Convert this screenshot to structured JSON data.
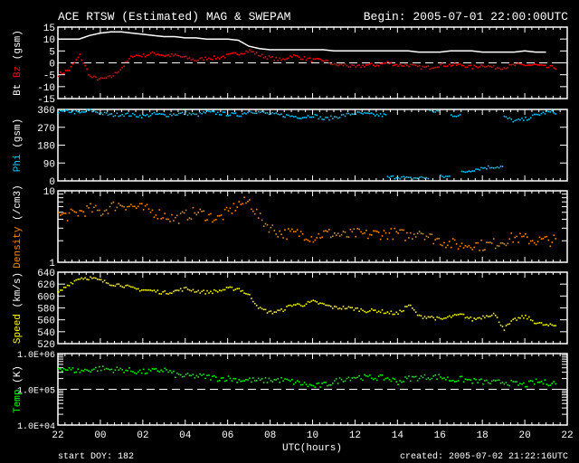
{
  "header": {
    "title": "ACE RTSW (Estimated) MAG & SWEPAM",
    "begin": "Begin: 2005-07-01 22:00:00UTC"
  },
  "footer": {
    "xlabel": "UTC(hours)",
    "start_doy": "start DOY: 182",
    "created": "created: 2005-07-02 21:22:16UTC"
  },
  "chart_data": {
    "type": "scatter",
    "x_ticks": [
      "22",
      "00",
      "02",
      "04",
      "06",
      "08",
      "10",
      "12",
      "14",
      "16",
      "18",
      "20",
      "22"
    ],
    "x_range_hours": [
      0,
      24
    ],
    "x_sample_step_hours": 0.5,
    "panels": [
      {
        "name": "mag",
        "ylabel_parts": [
          {
            "text": "Bt",
            "color": "#ffffff"
          },
          {
            "text": " Bz",
            "color": "#ff0000"
          },
          {
            "text": " (gsm)",
            "color": "#ffffff"
          }
        ],
        "scale": "linear",
        "ylim": [
          -15,
          15
        ],
        "ticks": [
          {
            "v": 15,
            "l": "15"
          },
          {
            "v": 10,
            "l": "10"
          },
          {
            "v": 5,
            "l": "5"
          },
          {
            "v": 0,
            "l": "0"
          },
          {
            "v": -5,
            "l": "-5"
          },
          {
            "v": -10,
            "l": "-10"
          },
          {
            "v": -15,
            "l": "-15"
          }
        ],
        "dashed_at": 0,
        "series": [
          {
            "name": "Bt",
            "color": "#ffffff",
            "style": "line",
            "values": [
              10,
              10,
              10,
              11.5,
              12.5,
              13,
              13,
              12.5,
              12,
              11.5,
              11,
              11,
              10.5,
              10.5,
              10,
              10,
              10,
              9.5,
              7,
              6,
              5.5,
              5.5,
              5.5,
              5.5,
              5.5,
              5.5,
              5,
              5,
              5,
              5,
              5,
              5,
              5,
              5,
              4.5,
              4.5,
              4.5,
              5,
              5,
              5,
              4.5,
              4.5,
              4.5,
              4.5,
              5,
              4.5,
              4.5
            ]
          },
          {
            "name": "Bz",
            "color": "#ff0000",
            "style": "dots",
            "values": [
              -5,
              -3,
              3,
              -6,
              -7,
              -6,
              -2,
              3,
              3,
              4,
              3,
              3,
              2,
              1,
              2,
              2,
              3,
              4,
              5,
              3,
              2,
              1,
              3,
              2,
              1,
              1,
              -1,
              -1,
              -2,
              -1,
              -1,
              0,
              -1,
              -1,
              -2,
              -2,
              -1,
              -1,
              -1,
              -2,
              -1,
              -2,
              -2,
              -1,
              -1,
              -1,
              -2
            ]
          }
        ]
      },
      {
        "name": "phi",
        "ylabel_parts": [
          {
            "text": "Phi",
            "color": "#00c8ff"
          },
          {
            "text": " (gsm)",
            "color": "#ffffff"
          }
        ],
        "scale": "linear",
        "ylim": [
          0,
          360
        ],
        "ticks": [
          {
            "v": 360,
            "l": "360"
          },
          {
            "v": 270,
            "l": "270"
          },
          {
            "v": 180,
            "l": "180"
          },
          {
            "v": 90,
            "l": "90"
          },
          {
            "v": 0,
            "l": "0"
          }
        ],
        "series": [
          {
            "name": "Phi",
            "color": "#00c8ff",
            "style": "dots",
            "values": [
              345,
              350,
              340,
              355,
              340,
              330,
              335,
              330,
              325,
              335,
              330,
              335,
              340,
              330,
              345,
              340,
              335,
              330,
              350,
              345,
              335,
              330,
              325,
              320,
              330,
              310,
              320,
              330,
              340,
              335,
              330,
              15,
              20,
              10,
              15,
              350,
              20,
              330,
              40,
              55,
              65,
              70,
              320,
              300,
              310,
              330,
              345
            ]
          }
        ]
      },
      {
        "name": "density",
        "ylabel_parts": [
          {
            "text": "Density",
            "color": "#ff8c00"
          },
          {
            "text": " (/cm3)",
            "color": "#ffffff"
          }
        ],
        "scale": "log",
        "ylim": [
          1,
          10
        ],
        "ticks": [
          {
            "v": 10,
            "l": "10"
          },
          {
            "v": 1,
            "l": "1"
          }
        ],
        "series": [
          {
            "name": "Density",
            "color": "#ff8c00",
            "style": "dots",
            "values": [
              4.5,
              4.5,
              5,
              5.5,
              5,
              6,
              6.5,
              6,
              5.5,
              5,
              4.5,
              4,
              4.5,
              5,
              4.5,
              4,
              5,
              6.5,
              7,
              4,
              3,
              2.5,
              2.5,
              2.5,
              2.2,
              2.5,
              2.5,
              2.3,
              2.5,
              2.4,
              2.5,
              2.5,
              2.5,
              2.3,
              2.8,
              2.2,
              2,
              1.8,
              1.7,
              1.8,
              1.7,
              1.8,
              2,
              2.2,
              2.1,
              2,
              2
            ]
          }
        ]
      },
      {
        "name": "speed",
        "ylabel_parts": [
          {
            "text": "Speed",
            "color": "#ffff00"
          },
          {
            "text": " (km/s)",
            "color": "#ffffff"
          }
        ],
        "scale": "linear",
        "ylim": [
          520,
          640
        ],
        "ticks": [
          {
            "v": 640,
            "l": "640"
          },
          {
            "v": 620,
            "l": "620"
          },
          {
            "v": 600,
            "l": "600"
          },
          {
            "v": 580,
            "l": "580"
          },
          {
            "v": 560,
            "l": "560"
          },
          {
            "v": 540,
            "l": "540"
          },
          {
            "v": 520,
            "l": "520"
          }
        ],
        "series": [
          {
            "name": "Speed",
            "color": "#ffff00",
            "style": "dots",
            "values": [
              605,
              620,
              630,
              630,
              625,
              620,
              618,
              612,
              610,
              608,
              605,
              608,
              612,
              608,
              606,
              608,
              612,
              612,
              600,
              578,
              572,
              575,
              585,
              585,
              590,
              585,
              580,
              580,
              578,
              575,
              575,
              572,
              570,
              585,
              565,
              565,
              560,
              565,
              568,
              560,
              565,
              570,
              545,
              560,
              565,
              555,
              550
            ]
          }
        ]
      },
      {
        "name": "temp",
        "ylabel_parts": [
          {
            "text": "Temp",
            "color": "#00ff00"
          },
          {
            "text": " (K)",
            "color": "#ffffff"
          }
        ],
        "scale": "log",
        "ylim": [
          10000,
          1000000
        ],
        "ticks": [
          {
            "v": 1000000,
            "l": "1.0E+06"
          },
          {
            "v": 100000,
            "l": "1.0E+05"
          },
          {
            "v": 10000,
            "l": "1.0E+04"
          }
        ],
        "dashed_at": 100000,
        "series": [
          {
            "name": "Temp",
            "color": "#00ff00",
            "style": "dots",
            "values": [
              400000,
              350000,
              320000,
              350000,
              380000,
              350000,
              350000,
              320000,
              300000,
              320000,
              350000,
              250000,
              230000,
              230000,
              220000,
              200000,
              200000,
              180000,
              180000,
              170000,
              180000,
              180000,
              160000,
              140000,
              120000,
              130000,
              160000,
              200000,
              220000,
              210000,
              210000,
              200000,
              160000,
              200000,
              210000,
              220000,
              220000,
              180000,
              190000,
              170000,
              160000,
              150000,
              160000,
              140000,
              130000,
              160000,
              150000
            ]
          }
        ]
      }
    ]
  }
}
